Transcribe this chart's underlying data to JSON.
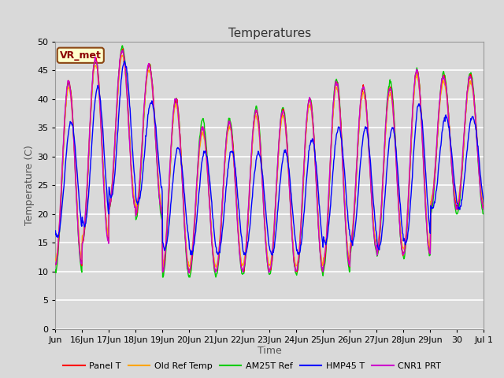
{
  "title": "Temperatures",
  "xlabel": "Time",
  "ylabel": "Temperature (C)",
  "ylim": [
    0,
    50
  ],
  "yticks": [
    0,
    5,
    10,
    15,
    20,
    25,
    30,
    35,
    40,
    45,
    50
  ],
  "legend_label": "VR_met",
  "series_labels": [
    "Panel T",
    "Old Ref Temp",
    "AM25T Ref",
    "HMP45 T",
    "CNR1 PRT"
  ],
  "series_colors": [
    "#ff0000",
    "#ffa500",
    "#00cc00",
    "#0000ff",
    "#cc00cc"
  ],
  "fig_facecolor": "#d9d9d9",
  "axes_facecolor": "#d9d9d9",
  "grid_color": "#ffffff",
  "title_fontsize": 11,
  "axis_label_fontsize": 9,
  "tick_fontsize": 8,
  "xtick_labels": [
    "Jun",
    "16Jun",
    "17Jun",
    "18Jun",
    "19Jun",
    "20Jun",
    "21Jun",
    "22Jun",
    "23Jun",
    "24Jun",
    "25Jun",
    "26Jun",
    "27Jun",
    "28Jun",
    "29Jun",
    "30",
    "Jul 1"
  ],
  "peaks": [
    43,
    47,
    48.5,
    46,
    40,
    35,
    36,
    38,
    38,
    40,
    43,
    42,
    42,
    45,
    44,
    44
  ],
  "troughs": [
    11,
    15,
    21,
    20,
    10,
    10,
    10,
    10,
    10,
    10,
    11,
    14,
    13,
    13,
    21,
    21
  ],
  "peaks_am": [
    43,
    47,
    49,
    46,
    40,
    36.5,
    36.5,
    38.5,
    38.5,
    40,
    43.5,
    42,
    43,
    45,
    44.5,
    44.5
  ],
  "troughs_am": [
    10,
    15,
    21,
    19,
    9,
    9,
    9.5,
    9.5,
    9.5,
    9.5,
    10,
    13.5,
    12.5,
    12.5,
    20,
    20
  ],
  "peaks_hmp": [
    36,
    42,
    46.5,
    39.5,
    31.5,
    31,
    31,
    30.5,
    31,
    33,
    35,
    35,
    35,
    39,
    37,
    37
  ],
  "troughs_hmp": [
    16,
    18,
    23,
    22,
    14,
    13,
    13,
    13,
    13,
    13,
    15,
    15,
    14,
    15,
    21,
    21
  ],
  "line_width": 1.0
}
